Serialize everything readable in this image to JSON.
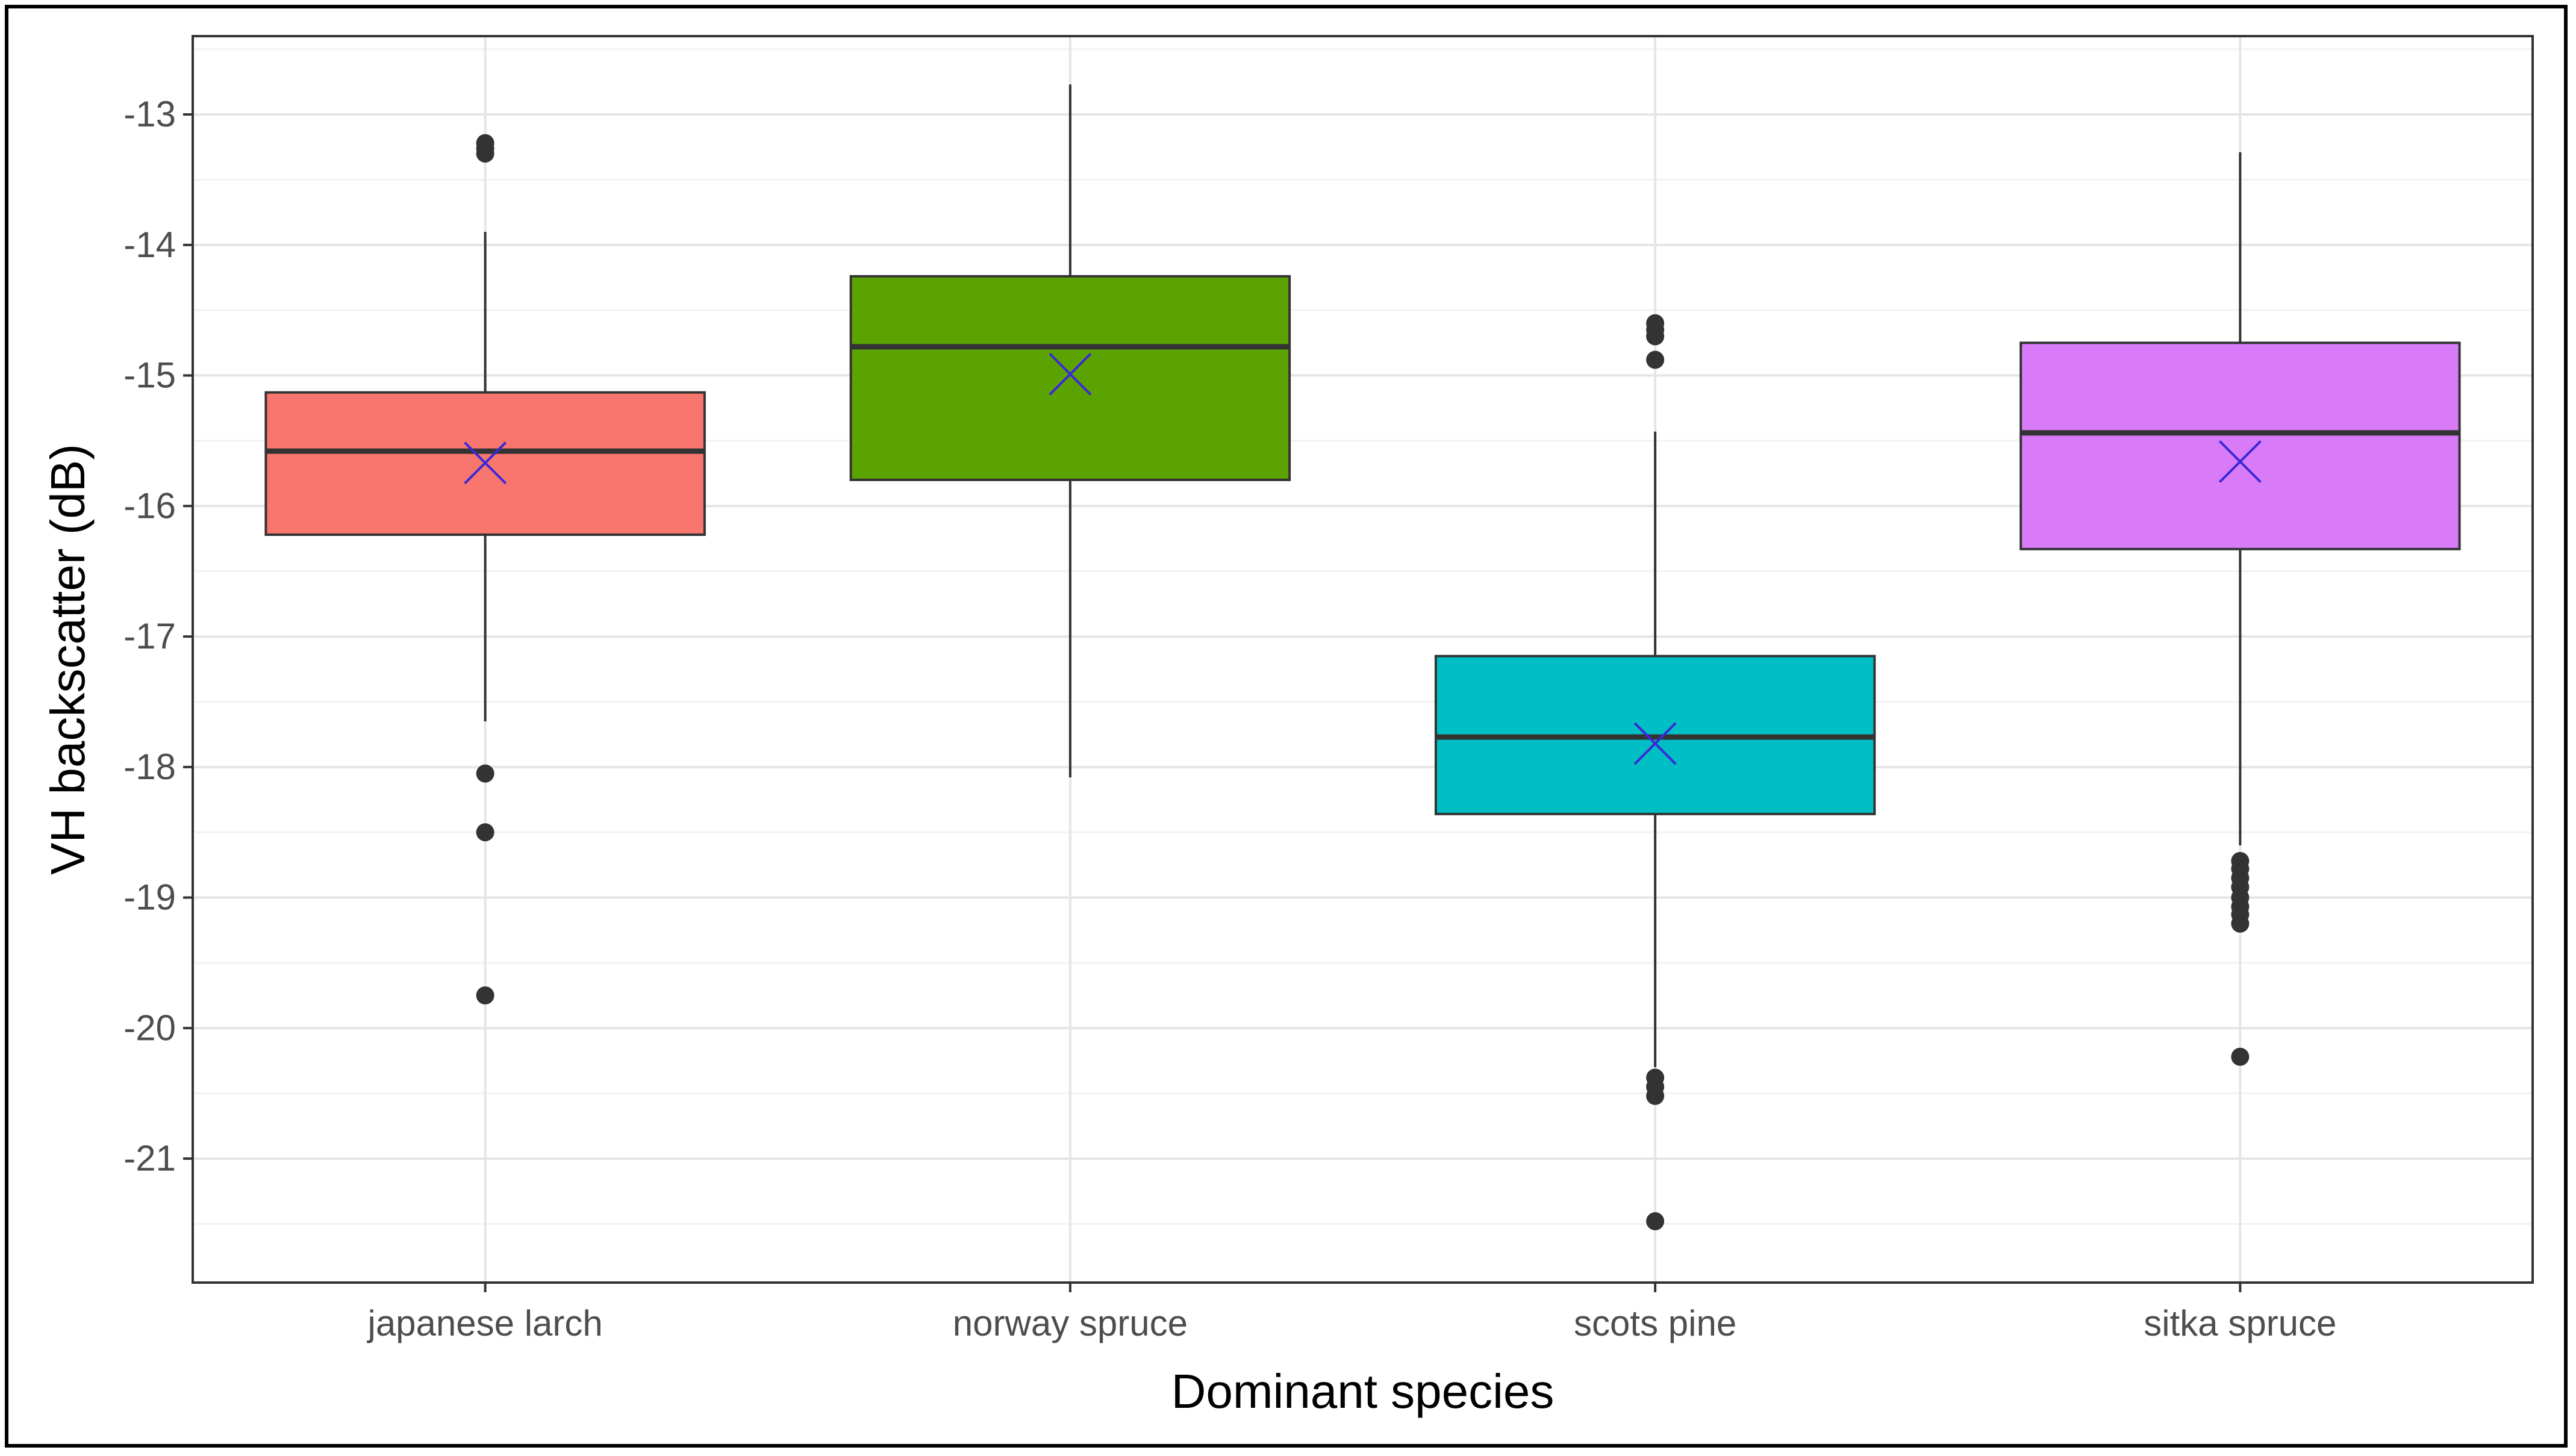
{
  "chart_data": {
    "type": "boxplot",
    "title": "",
    "xlabel": "Dominant species",
    "ylabel": "VH backscatter (dB)",
    "ylim": [
      -21.95,
      -12.4
    ],
    "y_ticks": [
      -21,
      -20,
      -19,
      -18,
      -17,
      -16,
      -15,
      -14,
      -13
    ],
    "grid": true,
    "categories": [
      "japanese larch",
      "norway spruce",
      "scots pine",
      "sitka spruce"
    ],
    "boxes": [
      {
        "category": "japanese larch",
        "color": "#f8766d",
        "q1": -16.22,
        "median": -15.58,
        "q3": -15.13,
        "whisker_low": -17.65,
        "whisker_high": -13.9,
        "mean": -15.67,
        "outliers": [
          -13.22,
          -13.26,
          -13.3,
          -18.05,
          -18.5,
          -19.75
        ]
      },
      {
        "category": "norway spruce",
        "color": "#5ba300",
        "q1": -15.8,
        "median": -14.78,
        "q3": -14.24,
        "whisker_low": -18.08,
        "whisker_high": -12.77,
        "mean": -14.99,
        "outliers": []
      },
      {
        "category": "scots pine",
        "color": "#00bfc4",
        "q1": -18.36,
        "median": -17.77,
        "q3": -17.15,
        "whisker_low": -20.3,
        "whisker_high": -15.43,
        "mean": -17.82,
        "outliers": [
          -14.6,
          -14.65,
          -14.7,
          -14.88,
          -20.38,
          -20.45,
          -20.52,
          -21.48
        ]
      },
      {
        "category": "sitka spruce",
        "color": "#d97bf9",
        "q1": -16.33,
        "median": -15.44,
        "q3": -14.75,
        "whisker_low": -18.6,
        "whisker_high": -13.29,
        "mean": -15.66,
        "outliers": [
          -18.72,
          -18.78,
          -18.85,
          -18.92,
          -19.0,
          -19.07,
          -19.13,
          -19.2,
          -20.22
        ]
      }
    ],
    "mean_marker": "x",
    "mean_marker_color": "#3b28d8"
  }
}
